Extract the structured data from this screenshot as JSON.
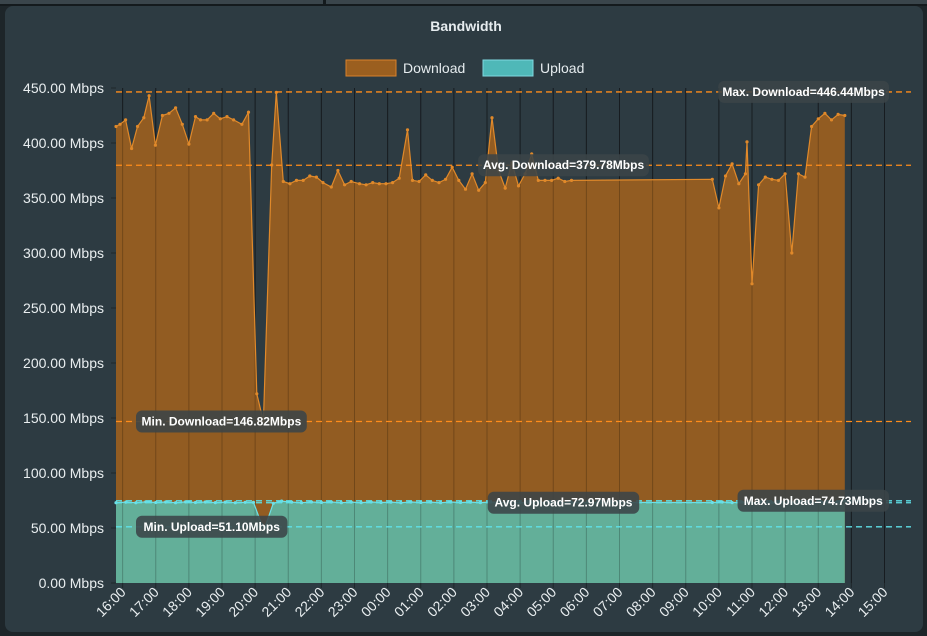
{
  "chart_data": {
    "type": "area",
    "title": "Bandwidth",
    "legend": [
      {
        "name": "Download",
        "color": "#9b5f1f",
        "border": "#d9822b"
      },
      {
        "name": "Upload",
        "color": "#4fb8b8",
        "border": "#7fd8e0"
      }
    ],
    "legend_placement": "top",
    "y_ticks": [
      "0.00 Mbps",
      "50.00 Mbps",
      "100.00 Mbps",
      "150.00 Mbps",
      "200.00 Mbps",
      "250.00 Mbps",
      "300.00 Mbps",
      "350.00 Mbps",
      "400.00 Mbps",
      "450.00 Mbps"
    ],
    "ylim": [
      0,
      450
    ],
    "x_ticks": [
      "16:00",
      "17:00",
      "18:00",
      "19:00",
      "20:00",
      "21:00",
      "22:00",
      "23:00",
      "00:00",
      "01:00",
      "02:00",
      "03:00",
      "04:00",
      "05:00",
      "06:00",
      "07:00",
      "08:00",
      "09:00",
      "10:00",
      "11:00",
      "12:00",
      "13:00",
      "14:00",
      "15:00"
    ],
    "x_range": [
      0,
      24
    ],
    "grid": true,
    "series": [
      {
        "name": "Download",
        "color": "#9b5f1f",
        "line_color": "#e0892a",
        "points": [
          [
            0.0,
            415
          ],
          [
            0.12,
            417
          ],
          [
            0.29,
            421
          ],
          [
            0.47,
            395
          ],
          [
            0.65,
            415
          ],
          [
            0.84,
            423
          ],
          [
            1.0,
            443
          ],
          [
            1.19,
            398
          ],
          [
            1.4,
            425
          ],
          [
            1.6,
            427
          ],
          [
            1.8,
            432
          ],
          [
            2.0,
            417
          ],
          [
            2.2,
            399
          ],
          [
            2.4,
            424
          ],
          [
            2.55,
            421
          ],
          [
            2.75,
            421
          ],
          [
            2.95,
            427
          ],
          [
            3.15,
            422
          ],
          [
            3.35,
            424
          ],
          [
            3.55,
            421
          ],
          [
            3.8,
            417
          ],
          [
            4.0,
            428
          ],
          [
            4.25,
            172
          ],
          [
            4.45,
            147
          ],
          [
            4.7,
            380
          ],
          [
            4.84,
            446
          ],
          [
            5.05,
            365
          ],
          [
            5.25,
            363
          ],
          [
            5.45,
            366
          ],
          [
            5.65,
            366
          ],
          [
            5.85,
            370
          ],
          [
            6.05,
            369
          ],
          [
            6.25,
            364
          ],
          [
            6.5,
            360
          ],
          [
            6.7,
            375
          ],
          [
            6.9,
            362
          ],
          [
            7.1,
            365
          ],
          [
            7.35,
            363
          ],
          [
            7.55,
            362
          ],
          [
            7.75,
            364
          ],
          [
            7.95,
            363
          ],
          [
            8.15,
            363
          ],
          [
            8.35,
            364
          ],
          [
            8.55,
            368
          ],
          [
            8.8,
            412
          ],
          [
            8.95,
            366
          ],
          [
            9.15,
            365
          ],
          [
            9.35,
            371
          ],
          [
            9.55,
            366
          ],
          [
            9.75,
            364
          ],
          [
            9.95,
            367
          ],
          [
            10.15,
            378
          ],
          [
            10.35,
            366
          ],
          [
            10.55,
            358
          ],
          [
            10.75,
            372
          ],
          [
            10.95,
            357
          ],
          [
            11.15,
            364
          ],
          [
            11.35,
            423
          ],
          [
            11.55,
            375
          ],
          [
            11.75,
            359
          ],
          [
            11.95,
            382
          ],
          [
            12.15,
            361
          ],
          [
            12.35,
            372
          ],
          [
            12.55,
            390
          ],
          [
            12.75,
            366
          ],
          [
            12.95,
            366
          ],
          [
            13.15,
            366
          ],
          [
            13.35,
            368
          ],
          [
            13.55,
            365
          ],
          [
            13.75,
            366
          ],
          [
            18.0,
            367
          ],
          [
            18.2,
            341
          ],
          [
            18.4,
            370
          ],
          [
            18.6,
            381
          ],
          [
            18.8,
            363
          ],
          [
            19.0,
            372
          ],
          [
            19.05,
            401
          ],
          [
            19.2,
            272
          ],
          [
            19.4,
            362
          ],
          [
            19.6,
            369
          ],
          [
            19.8,
            367
          ],
          [
            20.0,
            366
          ],
          [
            20.2,
            372
          ],
          [
            20.4,
            300
          ],
          [
            20.6,
            372
          ],
          [
            20.8,
            369
          ],
          [
            21.0,
            415
          ],
          [
            21.2,
            422
          ],
          [
            21.4,
            427
          ],
          [
            21.6,
            421
          ],
          [
            21.8,
            426
          ],
          [
            22.0,
            425
          ]
        ]
      },
      {
        "name": "Upload",
        "color": "#5fb6a4",
        "line_color": "#6fe0e6",
        "points": [
          [
            0.0,
            73
          ],
          [
            0.3,
            73.5
          ],
          [
            0.6,
            73
          ],
          [
            0.9,
            73.8
          ],
          [
            1.2,
            73.2
          ],
          [
            1.5,
            73.6
          ],
          [
            1.8,
            73
          ],
          [
            2.1,
            73.7
          ],
          [
            2.4,
            73.2
          ],
          [
            2.7,
            73.6
          ],
          [
            3.0,
            73.1
          ],
          [
            3.3,
            73.5
          ],
          [
            3.6,
            73
          ],
          [
            3.9,
            73.4
          ],
          [
            4.15,
            73.3
          ],
          [
            4.4,
            53
          ],
          [
            4.5,
            51.1
          ],
          [
            4.75,
            72.5
          ],
          [
            5.0,
            74.5
          ],
          [
            5.3,
            73.5
          ],
          [
            5.6,
            73
          ],
          [
            5.9,
            73.6
          ],
          [
            6.2,
            73.2
          ],
          [
            6.5,
            73.6
          ],
          [
            6.8,
            73
          ],
          [
            7.1,
            73.5
          ],
          [
            7.4,
            73.1
          ],
          [
            7.7,
            73.6
          ],
          [
            8.0,
            73.2
          ],
          [
            8.3,
            73.5
          ],
          [
            8.6,
            73
          ],
          [
            8.9,
            73.6
          ],
          [
            9.2,
            73.2
          ],
          [
            9.5,
            73.5
          ],
          [
            9.8,
            73
          ],
          [
            10.1,
            73.6
          ],
          [
            10.4,
            73.2
          ],
          [
            10.7,
            73.5
          ],
          [
            11.0,
            73.1
          ],
          [
            11.3,
            73.6
          ],
          [
            11.6,
            73.2
          ],
          [
            11.9,
            73.5
          ],
          [
            12.2,
            73
          ],
          [
            12.5,
            73.6
          ],
          [
            12.8,
            73.2
          ],
          [
            13.1,
            73.5
          ],
          [
            13.4,
            73.1
          ],
          [
            13.75,
            73.4
          ],
          [
            18.0,
            73.2
          ],
          [
            18.3,
            73.6
          ],
          [
            18.6,
            73.1
          ],
          [
            18.9,
            73.5
          ],
          [
            19.2,
            73
          ],
          [
            19.5,
            73.6
          ],
          [
            19.8,
            73.2
          ],
          [
            20.1,
            73.5
          ],
          [
            20.4,
            73.1
          ],
          [
            20.7,
            73.6
          ],
          [
            21.0,
            73.2
          ],
          [
            21.3,
            73.5
          ],
          [
            21.6,
            73.3
          ],
          [
            22.0,
            74.73
          ]
        ]
      }
    ],
    "reference_lines": [
      {
        "label": "Max. Download=446.44Mbps",
        "value": 446.44,
        "color": "#ff8c1a",
        "label_at": "right"
      },
      {
        "label": "Avg. Download=379.78Mbps",
        "value": 379.78,
        "color": "#ff8c1a",
        "label_at": "center"
      },
      {
        "label": "Min. Download=146.82Mbps",
        "value": 146.82,
        "color": "#ff8c1a",
        "label_at": "left"
      },
      {
        "label": "Max. Upload=74.73Mbps",
        "value": 74.73,
        "color": "#5fe0e8",
        "label_at": "right"
      },
      {
        "label": "Avg. Upload=72.97Mbps",
        "value": 72.97,
        "color": "#5fe0e8",
        "label_at": "center"
      },
      {
        "label": "Min. Upload=51.10Mbps",
        "value": 51.1,
        "color": "#5fe0e8",
        "label_at": "left"
      }
    ]
  }
}
